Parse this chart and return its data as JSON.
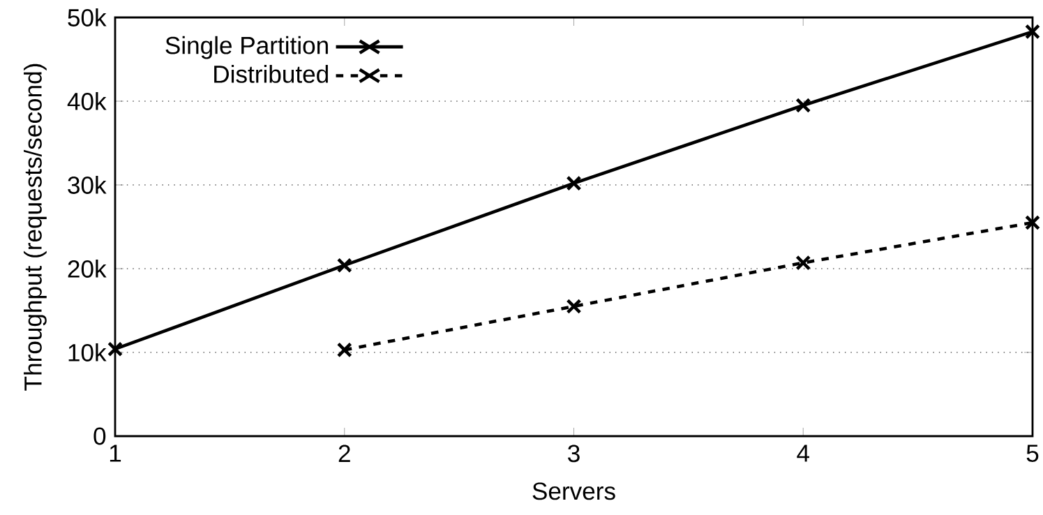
{
  "chart_data": {
    "type": "line",
    "xlabel": "Servers",
    "ylabel": "Throughput (requests/second)",
    "x": [
      1,
      2,
      3,
      4,
      5
    ],
    "series": [
      {
        "name": "Single Partition",
        "color": "#000000",
        "marker": "cross",
        "line_style": "solid",
        "values": [
          10400,
          20400,
          30200,
          39500,
          48300
        ]
      },
      {
        "name": "Distributed",
        "color": "#000000",
        "marker": "cross",
        "line_style": "dashed",
        "values": [
          null,
          10300,
          15500,
          20700,
          25500
        ]
      }
    ],
    "xlim": [
      1,
      5
    ],
    "ylim": [
      0,
      50000
    ],
    "xticks": [
      1,
      2,
      3,
      4,
      5
    ],
    "yticks": [
      0,
      {
        "value": 10000,
        "label": "10k"
      },
      {
        "value": 20000,
        "label": "20k"
      },
      {
        "value": 30000,
        "label": "30k"
      },
      {
        "value": 40000,
        "label": "40k"
      },
      {
        "value": 50000,
        "label": "50k"
      }
    ],
    "grid": "y",
    "legend": "top left"
  }
}
